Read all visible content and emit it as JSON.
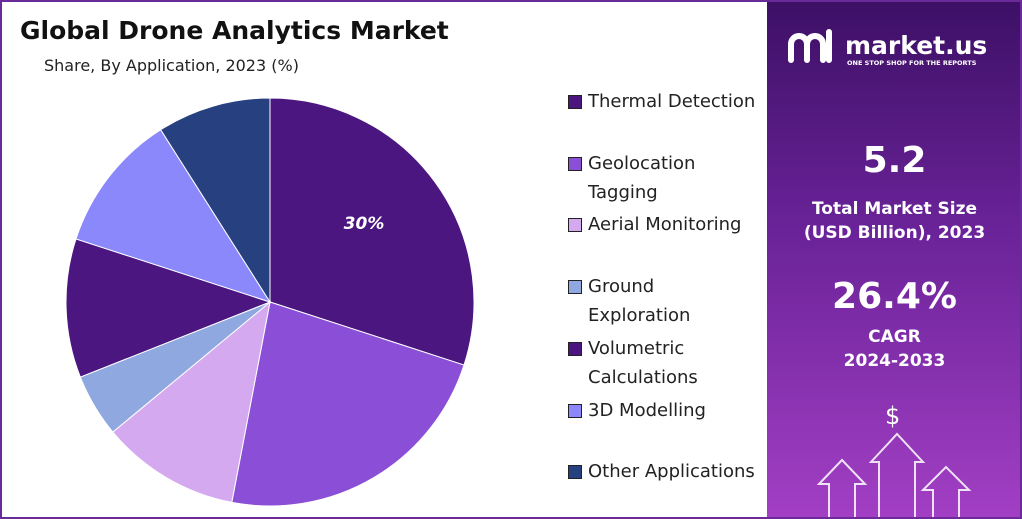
{
  "chart_data": {
    "type": "pie",
    "title": "Global Drone Analytics Market",
    "subtitle": "Share, By Application, 2023 (%)",
    "categories": [
      "Thermal Detection",
      "Geolocation Tagging",
      "Aerial Monitoring",
      "Ground Exploration",
      "Volumetric Calculations",
      "3D Modelling",
      "Other Applications"
    ],
    "values": [
      30,
      23,
      11,
      5,
      11,
      11,
      9
    ],
    "value_labels": [
      "30%",
      null,
      null,
      null,
      null,
      null,
      null
    ],
    "colors": [
      "#4b1680",
      "#8a4fd6",
      "#d5a9ef",
      "#8fa9e0",
      "#4b1680",
      "#8a88fb",
      "#27407f"
    ]
  },
  "panel": {
    "brand": "market.us",
    "tagline": "ONE STOP SHOP FOR THE REPORTS",
    "market_size": "5.2",
    "market_size_label": "Total Market Size",
    "market_size_unit": "(USD Billion), 2023",
    "cagr": "26.4%",
    "cagr_label": "CAGR",
    "cagr_period": "2024-2033",
    "icon": "$"
  }
}
